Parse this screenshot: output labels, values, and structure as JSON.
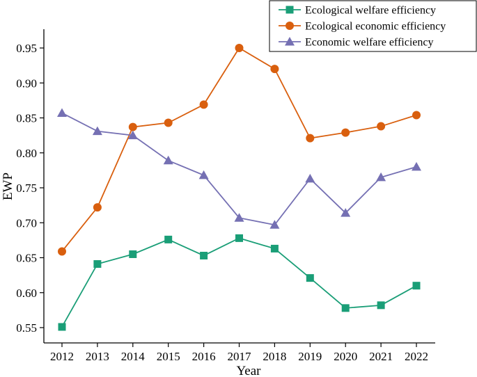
{
  "chart_data": {
    "type": "line",
    "xlabel": "Year",
    "ylabel": "EWP",
    "x": [
      2012,
      2013,
      2014,
      2015,
      2016,
      2017,
      2018,
      2019,
      2020,
      2021,
      2022
    ],
    "ylim": [
      0.53,
      0.98
    ],
    "yticks": [
      0.55,
      0.6,
      0.65,
      0.7,
      0.75,
      0.8,
      0.85,
      0.9,
      0.95
    ],
    "grid": false,
    "legend_position": "top-right",
    "series": [
      {
        "name": "Ecological welfare efficiency",
        "marker": "square",
        "color": "#1a9e77",
        "values": [
          0.551,
          0.641,
          0.655,
          0.676,
          0.653,
          0.678,
          0.663,
          0.621,
          0.578,
          0.582,
          0.61
        ]
      },
      {
        "name": "Ecological economic efficiency",
        "marker": "circle",
        "color": "#d95f0e",
        "values": [
          0.659,
          0.722,
          0.837,
          0.843,
          0.869,
          0.95,
          0.92,
          0.821,
          0.829,
          0.838,
          0.854
        ]
      },
      {
        "name": "Economic welfare efficiency",
        "marker": "triangle",
        "color": "#7570b3",
        "values": [
          0.857,
          0.831,
          0.825,
          0.789,
          0.768,
          0.707,
          0.697,
          0.763,
          0.714,
          0.765,
          0.78
        ]
      }
    ]
  }
}
